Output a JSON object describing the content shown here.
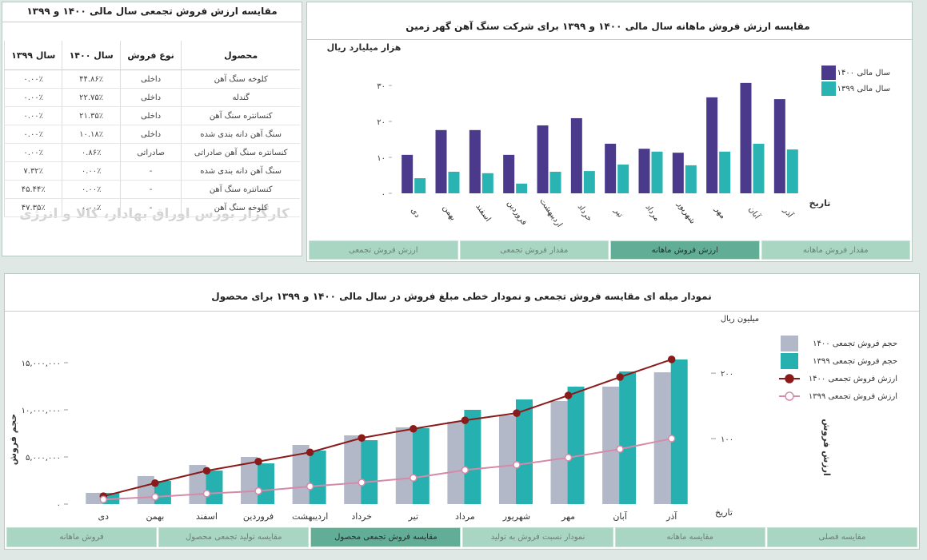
{
  "table_panel": {
    "title": "مقایسه ارزش فروش تجمعی سال مالی ۱۴۰۰ و ۱۳۹۹",
    "columns": [
      "محصول",
      "نوع فروش",
      "سال ۱۴۰۰",
      "سال ۱۳۹۹"
    ],
    "rows": [
      [
        "کلوخه سنگ آهن",
        "داخلی",
        "۴۴.۸۶٪",
        "۰.۰۰٪"
      ],
      [
        "گندله",
        "داخلی",
        "۲۲.۷۵٪",
        "۰.۰۰٪"
      ],
      [
        "کنسانتره سنگ آهن",
        "داخلی",
        "۲۱.۳۵٪",
        "۰.۰۰٪"
      ],
      [
        "سنگ آهن دانه بندی شده",
        "داخلی",
        "۱۰.۱۸٪",
        "۰.۰۰٪"
      ],
      [
        "کنسانتره سنگ آهن صادراتی",
        "صادراتی",
        "۰.۸۶٪",
        "۰.۰۰٪"
      ],
      [
        "سنگ آهن دانه بندی شده",
        "-",
        "۰.۰۰٪",
        "۷.۳۲٪"
      ],
      [
        "کنسانتره سنگ آهن",
        "-",
        "۰.۰۰٪",
        "۴۵.۴۴٪"
      ],
      [
        "کلوخه سنگ آهن",
        "-",
        "۰.۰۰٪",
        "۴۷.۳۵٪"
      ]
    ],
    "watermark": "کارگزار بورس اوراق بهادار، کالا و انرژی"
  },
  "monthly_tabs": {
    "tabs": [
      "مقدار فروش ماهانه",
      "ارزش فروش ماهانه",
      "مقدار فروش تجمعی",
      "ارزش فروش تجمعی"
    ],
    "active": 1
  },
  "cumulative_tabs": {
    "tabs": [
      "مقایسه فصلی",
      "مقایسه ماهانه",
      "نمودار نسبت فروش به تولید",
      "مقایسه فروش تجمعی محصول",
      "مقایسه تولید تجمعی محصول",
      "فروش ماهانه"
    ],
    "active": 3
  },
  "chart_data": [
    {
      "type": "bar",
      "title": "مقایسه ارزش فروش ماهانه سال مالی ۱۴۰۰ و ۱۳۹۹ برای شرکت سنگ آهن گهر زمین",
      "y_label": "هزار میلیارد ریال",
      "x_label": "تاریخ",
      "categories": [
        "دی",
        "بهمن",
        "اسفند",
        "فروردین",
        "اردیبهشت",
        "خرداد",
        "تیر",
        "مرداد",
        "شهریور",
        "مهر",
        "آبان",
        "آذر"
      ],
      "series": [
        {
          "name": "سال مالی ۱۴۰۰",
          "color": "#4b3a8c",
          "values": [
            10.7,
            17.6,
            17.6,
            10.7,
            18.9,
            20.9,
            13.8,
            12.4,
            11.3,
            26.7,
            30.7,
            26.2
          ]
        },
        {
          "name": "سال مالی ۱۳۹۹",
          "color": "#2ab3b3",
          "values": [
            4.2,
            6.0,
            5.6,
            2.7,
            6.0,
            6.2,
            8.0,
            11.6,
            7.8,
            11.6,
            13.8,
            12.2
          ]
        }
      ],
      "ylim": [
        0,
        40
      ],
      "yticks": [
        {
          "value": 0,
          "label": "۰"
        },
        {
          "value": 10,
          "label": "۱۰"
        },
        {
          "value": 20,
          "label": "۲۰"
        },
        {
          "value": 30,
          "label": "۳۰"
        }
      ],
      "legend": "right"
    },
    {
      "type": "combo",
      "title": "نمودار میله ای مقایسه فروش تجمعی و نمودار خطی مبلغ فروش در سال مالی ۱۴۰۰ و ۱۳۹۹ برای محصول",
      "y_label": "حجم فروش",
      "y2_label": "ارزش فروش",
      "y2_unit": "میلیون ریال",
      "x_label": "تاریخ",
      "categories": [
        "دی",
        "بهمن",
        "اسفند",
        "فروردین",
        "اردیبهشت",
        "خرداد",
        "تیر",
        "مرداد",
        "شهریور",
        "مهر",
        "آبان",
        "آذر"
      ],
      "series": [
        {
          "name": "حجم فروش تجمعی ۱۴۰۰",
          "type": "bar",
          "color": "#b3b8c8",
          "values": [
            1190000,
            2970000,
            4150000,
            5000000,
            6270000,
            7290000,
            8140000,
            8730000,
            9410000,
            10930000,
            12460000,
            13980000
          ]
        },
        {
          "name": "حجم فروش تجمعی ۱۳۹۹",
          "type": "bar",
          "color": "#26b0b0",
          "values": [
            1190000,
            2460000,
            3560000,
            4320000,
            5680000,
            6780000,
            8050000,
            10000000,
            11100000,
            12460000,
            14070000,
            15340000
          ]
        },
        {
          "name": "ارزش فروش تجمعی ۱۴۰۰",
          "type": "line",
          "axis": "y2",
          "color": "#8b1a1a",
          "values": [
            12,
            32,
            51,
            65,
            79,
            101,
            115,
            128,
            139,
            166,
            194,
            221
          ]
        },
        {
          "name": "ارزش فروش تجمعی ۱۳۹۹",
          "type": "line",
          "axis": "y2",
          "color": "#d48aa8",
          "values": [
            7,
            11,
            16,
            20,
            27,
            33,
            40,
            52,
            60,
            71,
            84,
            100
          ]
        }
      ],
      "ylim": [
        0,
        20000000
      ],
      "yticks": [
        {
          "value": 0,
          "label": "۰"
        },
        {
          "value": 5000000,
          "label": "۵,۰۰۰,۰۰۰"
        },
        {
          "value": 10000000,
          "label": "۱۰,۰۰۰,۰۰۰"
        },
        {
          "value": 15000000,
          "label": "۱۵,۰۰۰,۰۰۰"
        }
      ],
      "y2lim": [
        0,
        288
      ],
      "y2ticks": [
        {
          "value": 100,
          "label": "۱۰۰"
        },
        {
          "value": 200,
          "label": "۲۰۰"
        }
      ],
      "legend": "right"
    }
  ]
}
